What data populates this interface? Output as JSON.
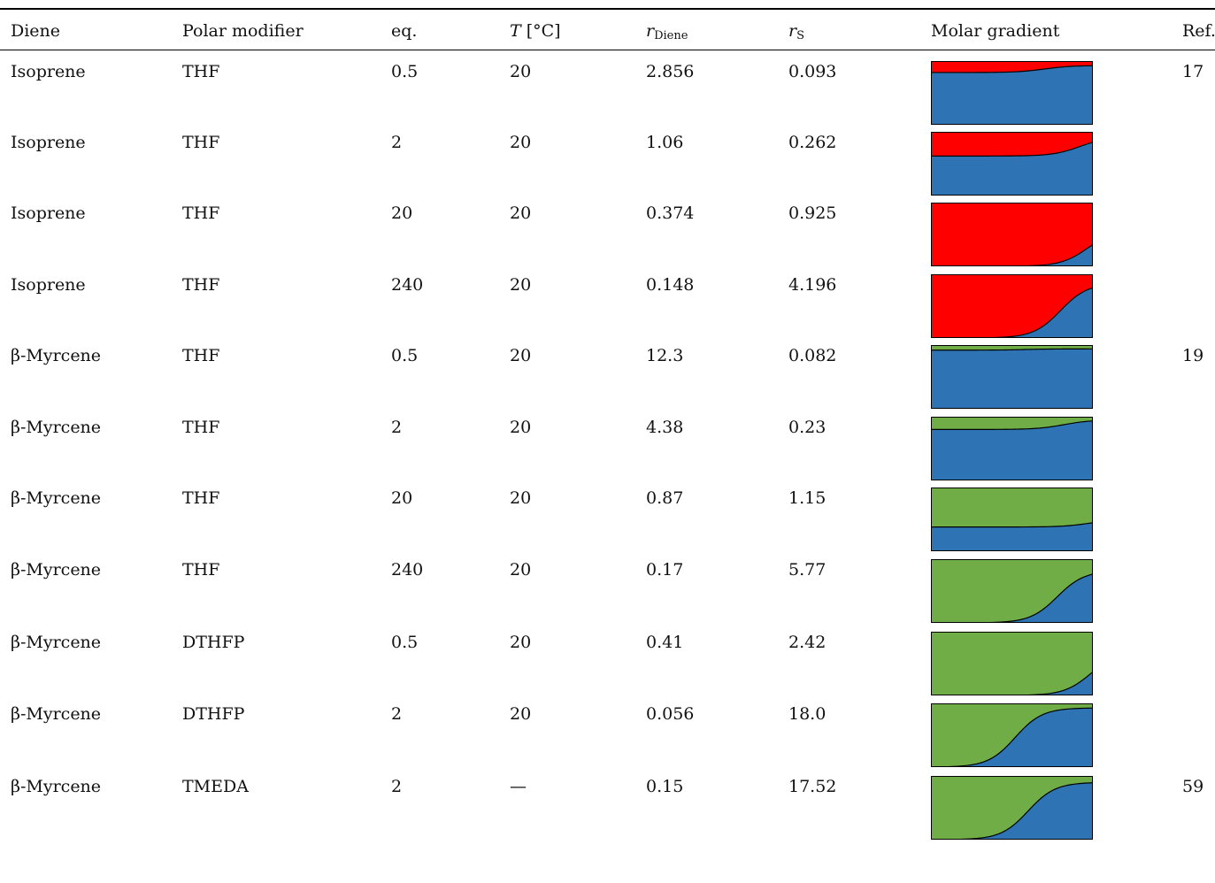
{
  "table": {
    "headers": {
      "diene": "Diene",
      "polar_modifier": "Polar modifier",
      "eq": "eq.",
      "temperature_symbol": "T",
      "temperature_unit": "[°C]",
      "r_diene_symbol": "r",
      "r_diene_sub": "Diene",
      "r_s_symbol": "r",
      "r_s_sub": "S",
      "molar_gradient": "Molar gradient",
      "ref": "Ref."
    },
    "rows": [
      {
        "diene": "Isoprene",
        "modifier": "THF",
        "eq": "0.5",
        "T": "20",
        "r_diene": "2.856",
        "r_s": "0.093",
        "ref": "17",
        "gradient": {
          "colors": [
            "#ff0000",
            "#2e74b5"
          ],
          "level_top": 0.93,
          "level_low": 0.82,
          "steep": 0.7
        }
      },
      {
        "diene": "Isoprene",
        "modifier": "THF",
        "eq": "2",
        "T": "20",
        "r_diene": "1.06",
        "r_s": "0.262",
        "ref": "",
        "gradient": {
          "colors": [
            "#ff0000",
            "#2e74b5"
          ],
          "level_top": 0.92,
          "level_low": 0.62,
          "steep": 0.92
        }
      },
      {
        "diene": "Isoprene",
        "modifier": "THF",
        "eq": "20",
        "T": "20",
        "r_diene": "0.374",
        "r_s": "0.925",
        "ref": "",
        "gradient": {
          "colors": [
            "#ff0000",
            "#2e74b5"
          ],
          "level_top": 0.58,
          "level_low": 0.0,
          "steep": 0.97
        }
      },
      {
        "diene": "Isoprene",
        "modifier": "THF",
        "eq": "240",
        "T": "20",
        "r_diene": "0.148",
        "r_s": "4.196",
        "ref": "",
        "gradient": {
          "colors": [
            "#ff0000",
            "#2e74b5"
          ],
          "level_top": 0.86,
          "level_low": 0.0,
          "steep": 0.8
        }
      },
      {
        "diene": "β-Myrcene",
        "modifier": "THF",
        "eq": "0.5",
        "T": "20",
        "r_diene": "12.3",
        "r_s": "0.082",
        "ref": "19",
        "gradient": {
          "colors": [
            "#70ad47",
            "#2e74b5"
          ],
          "level_top": 0.94,
          "level_low": 0.92,
          "steep": 0.58
        }
      },
      {
        "diene": "β-Myrcene",
        "modifier": "THF",
        "eq": "2",
        "T": "20",
        "r_diene": "4.38",
        "r_s": "0.23",
        "ref": "",
        "gradient": {
          "colors": [
            "#70ad47",
            "#2e74b5"
          ],
          "level_top": 0.95,
          "level_low": 0.8,
          "steep": 0.82
        }
      },
      {
        "diene": "β-Myrcene",
        "modifier": "THF",
        "eq": "20",
        "T": "20",
        "r_diene": "0.87",
        "r_s": "1.15",
        "ref": "",
        "gradient": {
          "colors": [
            "#70ad47",
            "#2e74b5"
          ],
          "level_top": 0.5,
          "level_low": 0.38,
          "steep": 0.98
        }
      },
      {
        "diene": "β-Myrcene",
        "modifier": "THF",
        "eq": "240",
        "T": "20",
        "r_diene": "0.17",
        "r_s": "5.77",
        "ref": "",
        "gradient": {
          "colors": [
            "#70ad47",
            "#2e74b5"
          ],
          "level_top": 0.82,
          "level_low": 0.0,
          "steep": 0.78
        }
      },
      {
        "diene": "β-Myrcene",
        "modifier": "DTHFP",
        "eq": "0.5",
        "T": "20",
        "r_diene": "0.41",
        "r_s": "2.42",
        "ref": "",
        "gradient": {
          "colors": [
            "#70ad47",
            "#2e74b5"
          ],
          "level_top": 0.7,
          "level_low": 0.0,
          "steep": 0.99
        }
      },
      {
        "diene": "β-Myrcene",
        "modifier": "DTHFP",
        "eq": "2",
        "T": "20",
        "r_diene": "0.056",
        "r_s": "18.0",
        "ref": "",
        "gradient": {
          "colors": [
            "#70ad47",
            "#2e74b5"
          ],
          "level_top": 0.93,
          "level_low": 0.0,
          "steep": 0.52
        }
      },
      {
        "diene": "β-Myrcene",
        "modifier": "TMEDA",
        "eq": "2",
        "T": "—",
        "r_diene": "0.15",
        "r_s": "17.52",
        "ref": "59",
        "gradient": {
          "colors": [
            "#70ad47",
            "#2e74b5"
          ],
          "level_top": 0.9,
          "level_low": 0.0,
          "steep": 0.6
        }
      }
    ]
  }
}
